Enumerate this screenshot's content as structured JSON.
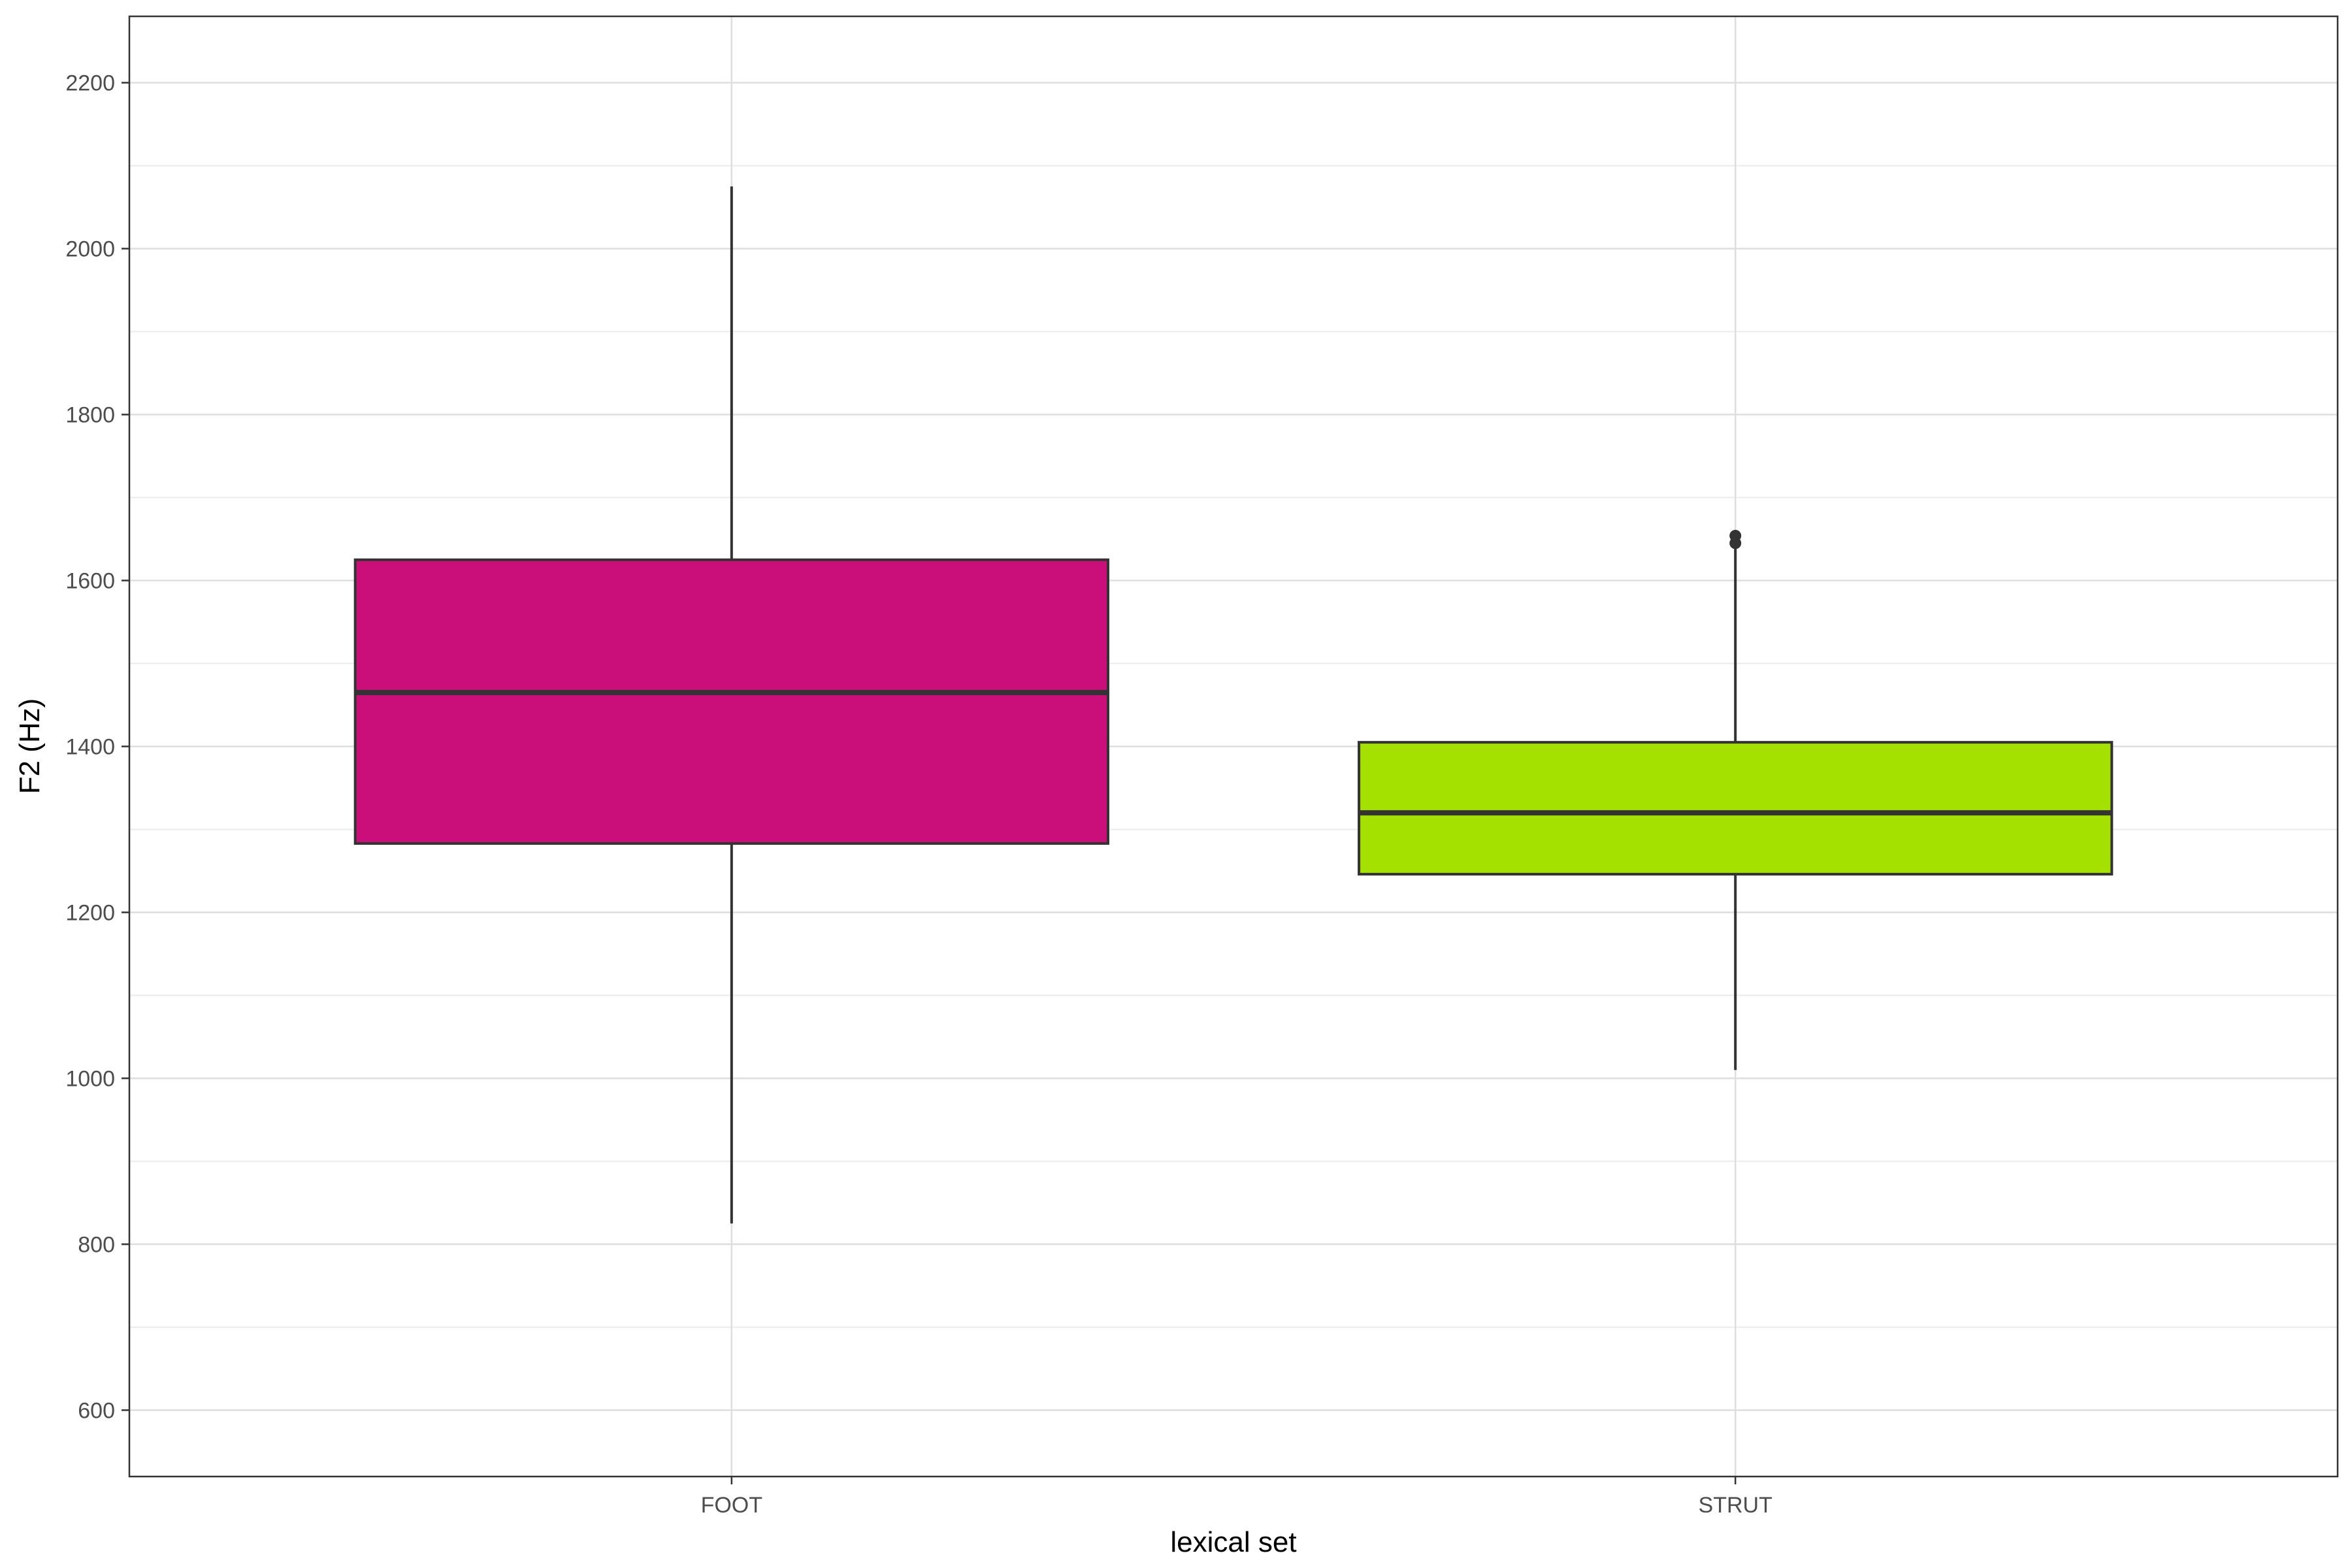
{
  "chart_data": {
    "type": "boxplot",
    "xlabel": "lexical set",
    "ylabel": "F2 (Hz)",
    "ylim": [
      520,
      2280
    ],
    "y_ticks": [
      600,
      800,
      1000,
      1200,
      1400,
      1600,
      1800,
      2000,
      2200
    ],
    "y_minor_ticks": [
      700,
      900,
      1100,
      1300,
      1500,
      1700,
      1900,
      2100
    ],
    "grid": true,
    "legend": "none",
    "categories": [
      "FOOT",
      "STRUT"
    ],
    "boxes": [
      {
        "category": "FOOT",
        "color": "#CB0F7A",
        "whisker_low": 825,
        "q1": 1283,
        "median": 1465,
        "q3": 1625,
        "whisker_high": 2075,
        "outliers": []
      },
      {
        "category": "STRUT",
        "color": "#A4E100",
        "whisker_low": 1010,
        "q1": 1246,
        "median": 1320,
        "q3": 1405,
        "whisker_high": 1641,
        "outliers": [
          1645,
          1654
        ]
      }
    ]
  }
}
